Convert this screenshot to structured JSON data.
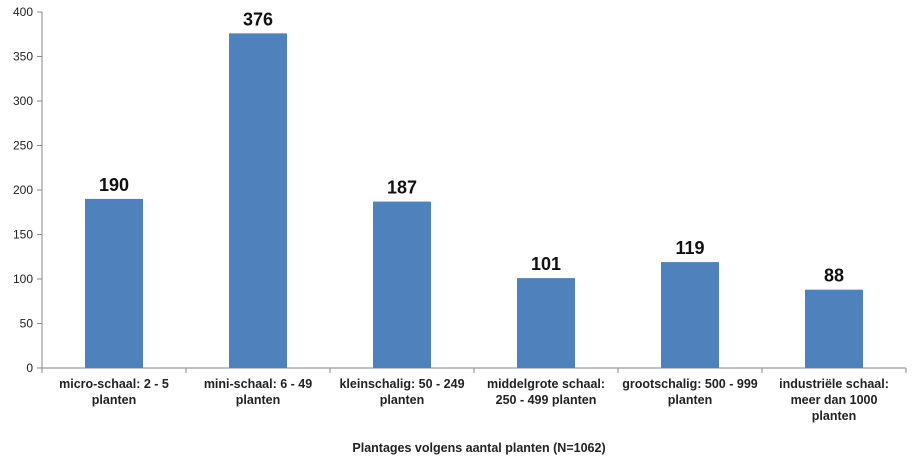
{
  "chart_data": {
    "type": "bar",
    "categories": [
      [
        "micro-schaal: 2 - 5",
        "planten"
      ],
      [
        "mini-schaal: 6 - 49",
        "planten"
      ],
      [
        "kleinschalig: 50 - 249",
        "planten"
      ],
      [
        "middelgrote schaal:",
        "250 - 499 planten"
      ],
      [
        "grootschalig: 500 - 999",
        "planten"
      ],
      [
        "industriële schaal:",
        "meer dan 1000",
        "planten"
      ]
    ],
    "values": [
      190,
      376,
      187,
      101,
      119,
      88
    ],
    "data_labels": [
      "190",
      "376",
      "187",
      "101",
      "119",
      "88"
    ],
    "title": "",
    "xlabel": "Plantages volgens aantal planten (N=1062)",
    "ylabel": "",
    "ylim": [
      0,
      400
    ],
    "yticks": [
      0,
      50,
      100,
      150,
      200,
      250,
      300,
      350,
      400
    ],
    "grid": false,
    "legend": "none",
    "bar_color": "#4f81bd"
  }
}
